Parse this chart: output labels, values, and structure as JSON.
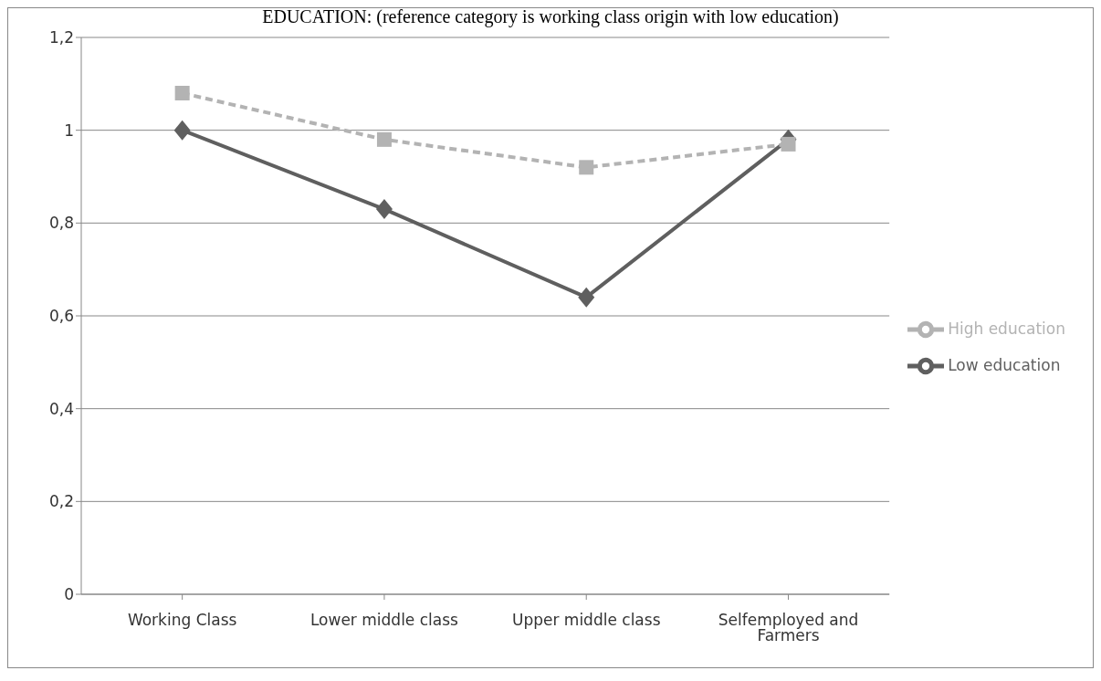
{
  "chart_data": {
    "type": "line",
    "title": "EDUCATION: (reference category is working class origin with low education)",
    "categories": [
      "Working Class",
      "Lower middle class",
      "Upper middle class",
      "Selfemployed and Farmers"
    ],
    "series": [
      {
        "name": "Low education",
        "color": "#5f5f5f",
        "values": [
          1,
          0.83,
          0.64,
          0.98
        ],
        "marker": "diamond",
        "line_style": "solid"
      },
      {
        "name": "High education",
        "color": "#b3b3b3",
        "values": [
          1.08,
          0.98,
          0.92,
          0.97
        ],
        "marker": "square",
        "line_style": "dashed"
      }
    ],
    "ylim": [
      0,
      1.2
    ],
    "yticks": [
      {
        "value": 0,
        "label": "0"
      },
      {
        "value": 0.2,
        "label": "0,2"
      },
      {
        "value": 0.4,
        "label": "0,4"
      },
      {
        "value": 0.6,
        "label": "0,6"
      },
      {
        "value": 0.8,
        "label": "0,8"
      },
      {
        "value": 1,
        "label": "1"
      },
      {
        "value": 1.2,
        "label": "1,2"
      }
    ],
    "grid": "y",
    "legend": "right"
  }
}
